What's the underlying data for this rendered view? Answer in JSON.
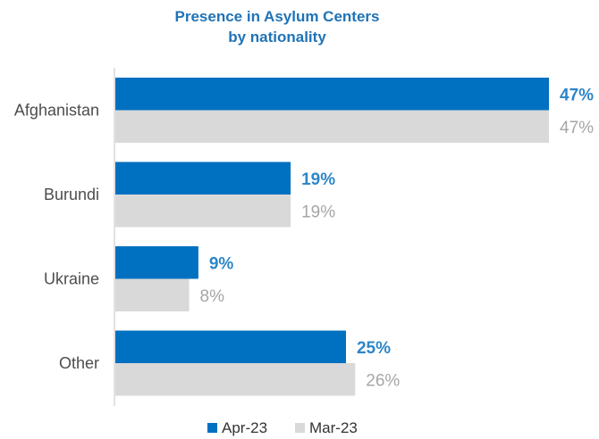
{
  "chart_data": {
    "type": "bar",
    "orientation": "horizontal",
    "title": [
      "Presence in Asylum Centers",
      "by nationality"
    ],
    "categories": [
      "Afghanistan",
      "Burundi",
      "Ukraine",
      "Other"
    ],
    "series": [
      {
        "name": "Apr-23",
        "values": [
          47,
          19,
          9,
          25
        ],
        "labels": [
          "47%",
          "19%",
          "9%",
          "25%"
        ],
        "color": "#0070c0",
        "label_color": "#2e86c8",
        "label_bold": true
      },
      {
        "name": "Mar-23",
        "values": [
          47,
          19,
          8,
          26
        ],
        "labels": [
          "47%",
          "19%",
          "8%",
          "26%"
        ],
        "color": "#d9d9d9",
        "label_color": "#a6a6a6",
        "label_bold": false
      }
    ],
    "xlim": [
      0,
      47
    ],
    "grid": false,
    "legend_position": "bottom"
  }
}
